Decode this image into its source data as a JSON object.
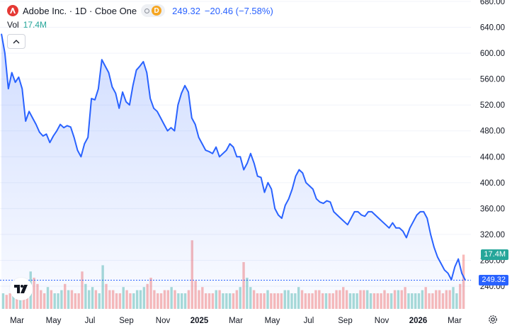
{
  "header": {
    "symbol_title": "Adobe Inc. · 1D · Cboe One",
    "badge": "D",
    "last_price": "249.32",
    "change": "−20.46 (−7.58%)",
    "logo_icon": "adobe-logo-icon"
  },
  "volume_legend": {
    "label": "Vol",
    "value": "17.4M"
  },
  "price_tag": {
    "label": "249.32",
    "color": "#2962ff"
  },
  "volume_tag": {
    "label": "17.4M",
    "color": "#26a69a"
  },
  "colors": {
    "line": "#2962ff",
    "vol_up": "#26a69a",
    "vol_down": "#ef5350"
  },
  "chart_data": {
    "type": "line",
    "title": "Adobe Inc. · 1D · Cboe One",
    "ylim": [
      205,
      680
    ],
    "y_ticks": [
      "680.00",
      "640.00",
      "600.00",
      "560.00",
      "520.00",
      "480.00",
      "440.00",
      "400.00",
      "360.00",
      "320.00",
      "280.00",
      "240.00"
    ],
    "x_labels": [
      "Mar",
      "May",
      "Jul",
      "Sep",
      "Nov",
      "2025",
      "Mar",
      "May",
      "Jul",
      "Sep",
      "Nov",
      "2026",
      "Mar"
    ],
    "bold_x_labels": [
      "2025",
      "2026"
    ],
    "series": [
      {
        "values": [
          630,
          600,
          545,
          570,
          555,
          563,
          545,
          495,
          510,
          500,
          490,
          478,
          472,
          475,
          462,
          472,
          480,
          490,
          485,
          488,
          486,
          470,
          450,
          440,
          460,
          470,
          530,
          528,
          545,
          590,
          580,
          570,
          548,
          538,
          515,
          540,
          525,
          520,
          550,
          574,
          580,
          587,
          570,
          530,
          515,
          510,
          500,
          490,
          480,
          485,
          480,
          520,
          538,
          550,
          540,
          500,
          490,
          470,
          460,
          450,
          448,
          445,
          455,
          440,
          445,
          450,
          460,
          455,
          440,
          440,
          420,
          430,
          445,
          430,
          410,
          408,
          385,
          400,
          390,
          360,
          350,
          345,
          365,
          375,
          390,
          410,
          420,
          415,
          400,
          395,
          390,
          375,
          370,
          368,
          372,
          370,
          355,
          350,
          345,
          340,
          335,
          345,
          355,
          355,
          350,
          348,
          355,
          355,
          350,
          345,
          340,
          335,
          330,
          338,
          330,
          330,
          325,
          315,
          330,
          340,
          350,
          355,
          355,
          345,
          320,
          300,
          285,
          275,
          265,
          260,
          250,
          270,
          282,
          260,
          249.32
        ]
      }
    ],
    "volume": {
      "name": "Vol",
      "last": "17.4M",
      "values": [
        5,
        4.5,
        5,
        6,
        7,
        8,
        7,
        6,
        12,
        10,
        8,
        6,
        5,
        7,
        6,
        5,
        5,
        6,
        8,
        6,
        6,
        5,
        5,
        12,
        8,
        6,
        7,
        6,
        5,
        14,
        8,
        6,
        6,
        5,
        5,
        7,
        6,
        5,
        5,
        6,
        6,
        7,
        8,
        10,
        6,
        5,
        5,
        6,
        6,
        7,
        6,
        5,
        5,
        5,
        6,
        22,
        9,
        6,
        7,
        5,
        5,
        5,
        6,
        6,
        5,
        5,
        5,
        5,
        6,
        7,
        15,
        10,
        7,
        6,
        5,
        5,
        5,
        6,
        5,
        5,
        5,
        5,
        6,
        6,
        5,
        5,
        7,
        6,
        5,
        5,
        5,
        6,
        6,
        5,
        5,
        5,
        5,
        6,
        6,
        7,
        6,
        5,
        5,
        5,
        6,
        6,
        6,
        5,
        5,
        5,
        5,
        6,
        5,
        5,
        6,
        6,
        6,
        7,
        5,
        5,
        5,
        5,
        6,
        7,
        5,
        5,
        6,
        6,
        5,
        6,
        6,
        7,
        5,
        8,
        17.4
      ]
    }
  }
}
